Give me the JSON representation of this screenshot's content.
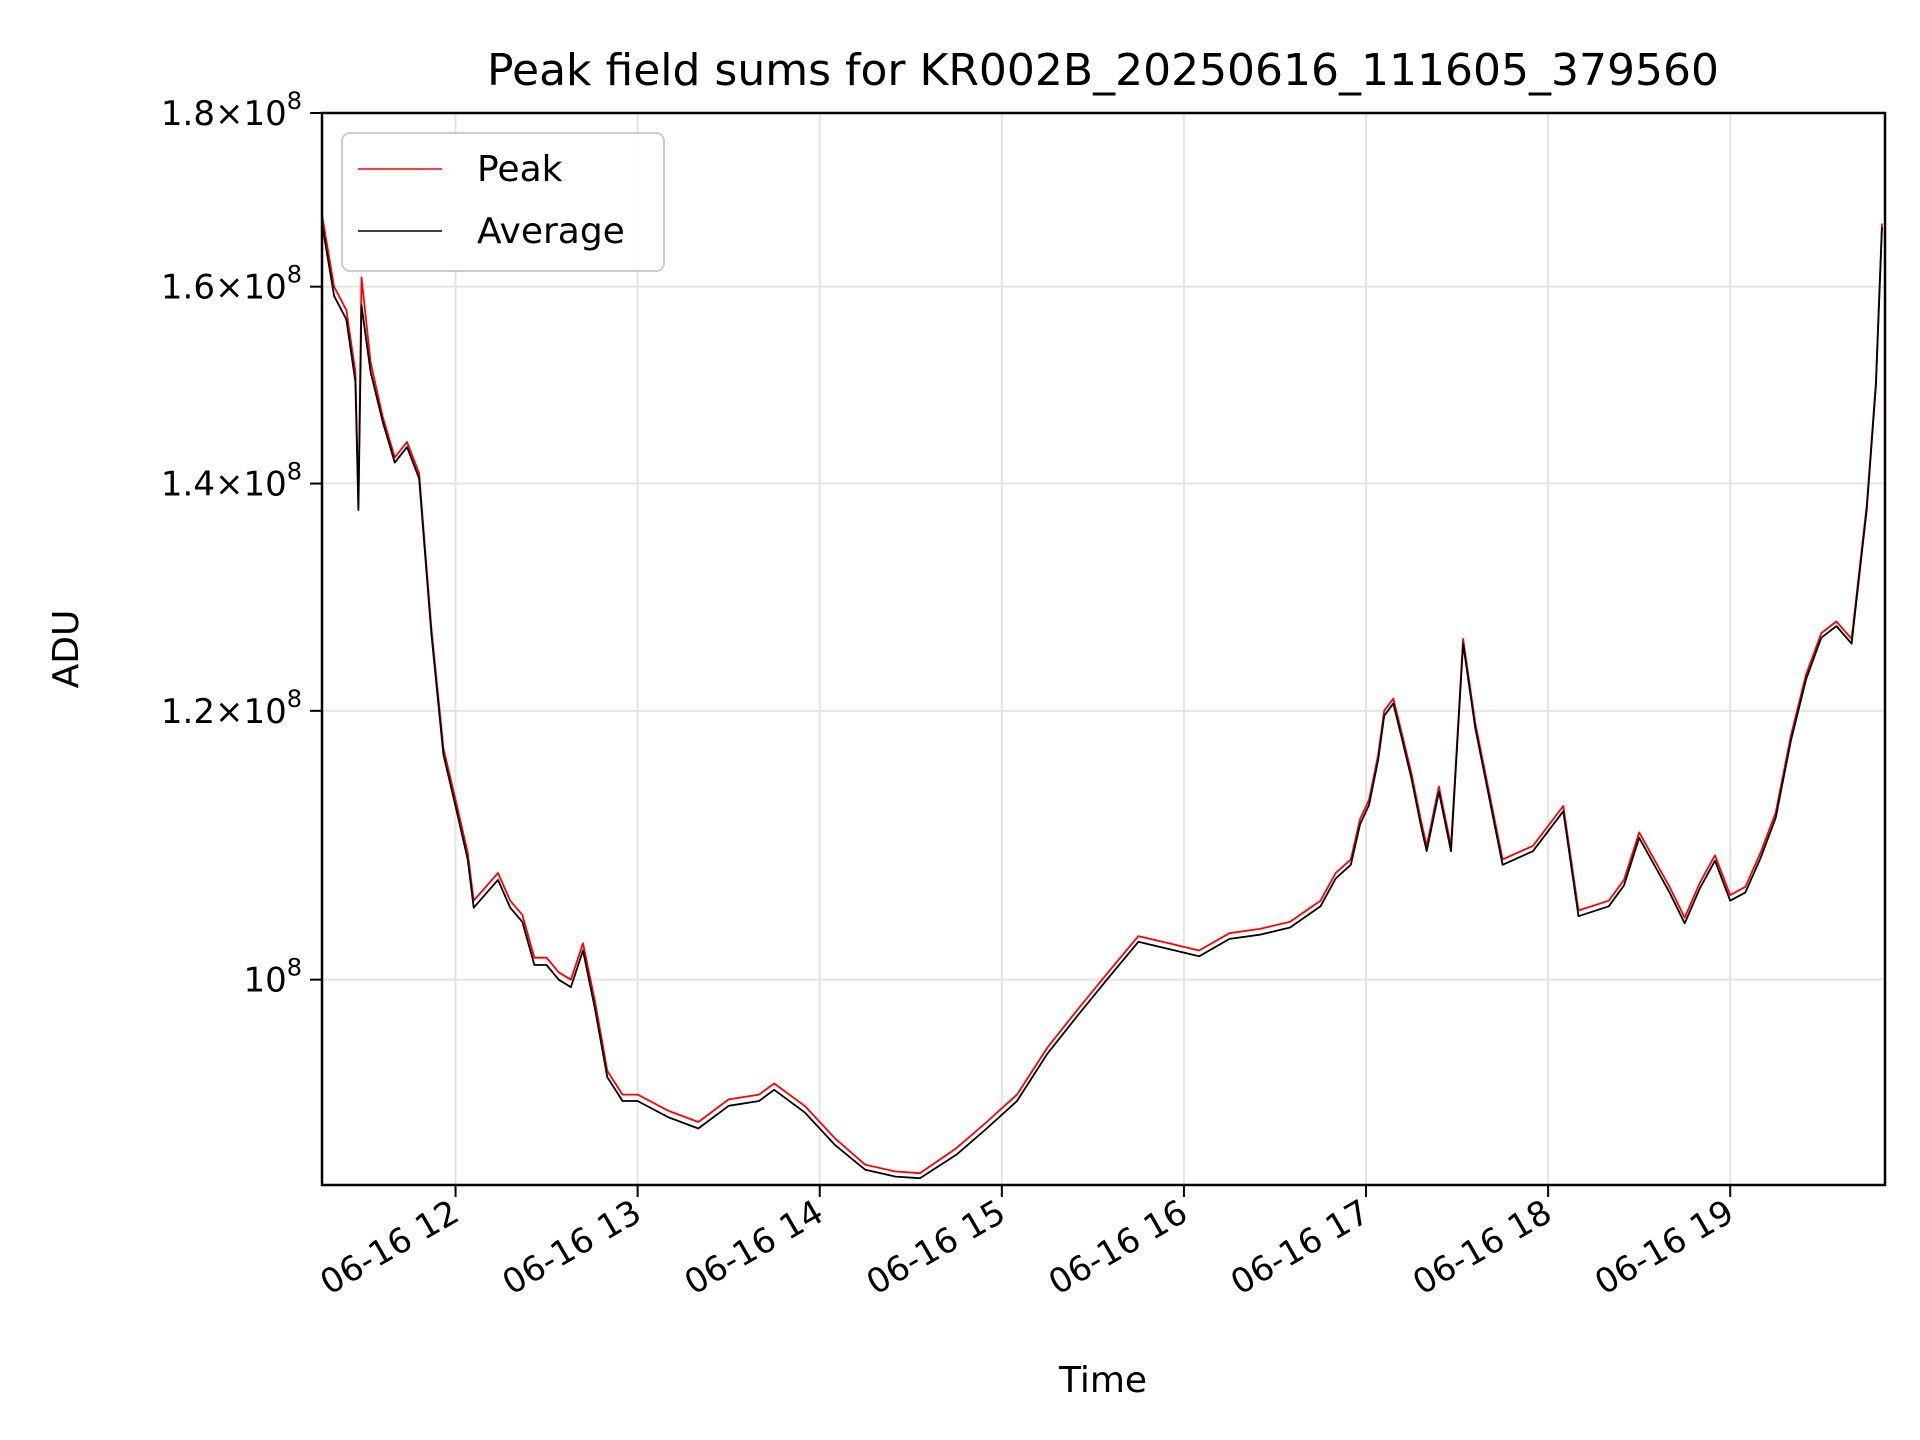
{
  "chart_data": {
    "type": "line",
    "title": "Peak field sums for KR002B_20250616_111605_379560",
    "xlabel": "Time",
    "ylabel": "ADU",
    "x_range": [
      "2025-06-16T11:16",
      "2025-06-16T19:51"
    ],
    "y_scale": "log",
    "ylim": [
      87000000,
      180000000
    ],
    "grid": true,
    "legend_position": "upper-left",
    "x_ticks": [
      {
        "value": "2025-06-16T12:00",
        "label": "06-16 12"
      },
      {
        "value": "2025-06-16T13:00",
        "label": "06-16 13"
      },
      {
        "value": "2025-06-16T14:00",
        "label": "06-16 14"
      },
      {
        "value": "2025-06-16T15:00",
        "label": "06-16 15"
      },
      {
        "value": "2025-06-16T16:00",
        "label": "06-16 16"
      },
      {
        "value": "2025-06-16T17:00",
        "label": "06-16 17"
      },
      {
        "value": "2025-06-16T18:00",
        "label": "06-16 18"
      },
      {
        "value": "2025-06-16T19:00",
        "label": "06-16 19"
      }
    ],
    "y_ticks": [
      {
        "value": 100000000,
        "mantissa": "",
        "exp": "8"
      },
      {
        "value": 120000000,
        "mantissa": "1.2",
        "exp": "8"
      },
      {
        "value": 140000000,
        "mantissa": "1.4",
        "exp": "8"
      },
      {
        "value": 160000000,
        "mantissa": "1.6",
        "exp": "8"
      },
      {
        "value": 180000000,
        "mantissa": "1.8",
        "exp": "8"
      }
    ],
    "x": [
      "2025-06-16T11:16",
      "2025-06-16T11:20",
      "2025-06-16T11:24",
      "2025-06-16T11:27",
      "2025-06-16T11:28",
      "2025-06-16T11:29",
      "2025-06-16T11:32",
      "2025-06-16T11:36",
      "2025-06-16T11:40",
      "2025-06-16T11:44",
      "2025-06-16T11:48",
      "2025-06-16T11:52",
      "2025-06-16T11:56",
      "2025-06-16T12:00",
      "2025-06-16T12:04",
      "2025-06-16T12:06",
      "2025-06-16T12:10",
      "2025-06-16T12:14",
      "2025-06-16T12:18",
      "2025-06-16T12:22",
      "2025-06-16T12:26",
      "2025-06-16T12:30",
      "2025-06-16T12:34",
      "2025-06-16T12:38",
      "2025-06-16T12:42",
      "2025-06-16T12:46",
      "2025-06-16T12:50",
      "2025-06-16T12:55",
      "2025-06-16T13:00",
      "2025-06-16T13:10",
      "2025-06-16T13:20",
      "2025-06-16T13:30",
      "2025-06-16T13:40",
      "2025-06-16T13:45",
      "2025-06-16T13:55",
      "2025-06-16T14:05",
      "2025-06-16T14:15",
      "2025-06-16T14:25",
      "2025-06-16T14:33",
      "2025-06-16T14:45",
      "2025-06-16T14:55",
      "2025-06-16T15:05",
      "2025-06-16T15:15",
      "2025-06-16T15:25",
      "2025-06-16T15:35",
      "2025-06-16T15:45",
      "2025-06-16T15:55",
      "2025-06-16T16:05",
      "2025-06-16T16:15",
      "2025-06-16T16:25",
      "2025-06-16T16:35",
      "2025-06-16T16:45",
      "2025-06-16T16:50",
      "2025-06-16T16:55",
      "2025-06-16T16:58",
      "2025-06-16T17:01",
      "2025-06-16T17:04",
      "2025-06-16T17:06",
      "2025-06-16T17:09",
      "2025-06-16T17:12",
      "2025-06-16T17:15",
      "2025-06-16T17:18",
      "2025-06-16T17:20",
      "2025-06-16T17:24",
      "2025-06-16T17:28",
      "2025-06-16T17:32",
      "2025-06-16T17:36",
      "2025-06-16T17:45",
      "2025-06-16T17:55",
      "2025-06-16T18:05",
      "2025-06-16T18:10",
      "2025-06-16T18:20",
      "2025-06-16T18:25",
      "2025-06-16T18:30",
      "2025-06-16T18:40",
      "2025-06-16T18:45",
      "2025-06-16T18:50",
      "2025-06-16T18:55",
      "2025-06-16T19:00",
      "2025-06-16T19:05",
      "2025-06-16T19:10",
      "2025-06-16T19:15",
      "2025-06-16T19:20",
      "2025-06-16T19:25",
      "2025-06-16T19:30",
      "2025-06-16T19:35",
      "2025-06-16T19:40",
      "2025-06-16T19:45",
      "2025-06-16T19:48",
      "2025-06-16T19:50"
    ],
    "series": [
      {
        "name": "Peak",
        "color": "#ff0000",
        "values": [
          168000000,
          160000000,
          157500000,
          151000000,
          138000000,
          161000000,
          152000000,
          146500000,
          142500000,
          144000000,
          141000000,
          127000000,
          117000000,
          113000000,
          109000000,
          105500000,
          106500000,
          107500000,
          105500000,
          104500000,
          101500000,
          101500000,
          100500000,
          100000000,
          102500000,
          98500000,
          94000000,
          92500000,
          92500000,
          91500000,
          90800000,
          92200000,
          92500000,
          93200000,
          91800000,
          89800000,
          88200000,
          87800000,
          87700000,
          89200000,
          90800000,
          92500000,
          95500000,
          98000000,
          100500000,
          103000000,
          102500000,
          102000000,
          103200000,
          103500000,
          104000000,
          105500000,
          107500000,
          108500000,
          111500000,
          113000000,
          116500000,
          120000000,
          121000000,
          118000000,
          115000000,
          111500000,
          109500000,
          114000000,
          109500000,
          126000000,
          119000000,
          108500000,
          109500000,
          112500000,
          104800000,
          105500000,
          107000000,
          110500000,
          106500000,
          104300000,
          106800000,
          108800000,
          105900000,
          106500000,
          109000000,
          112000000,
          118000000,
          123000000,
          126500000,
          127500000,
          126000000,
          138000000,
          150000000,
          167000000
        ]
      },
      {
        "name": "Average",
        "color": "#000000",
        "values": [
          167000000,
          159000000,
          156500000,
          150000000,
          137500000,
          158000000,
          151000000,
          146000000,
          142000000,
          143500000,
          140500000,
          126500000,
          116500000,
          112500000,
          108500000,
          105000000,
          106000000,
          107000000,
          105000000,
          104000000,
          101000000,
          101000000,
          100000000,
          99500000,
          102000000,
          98000000,
          93600000,
          92100000,
          92100000,
          91100000,
          90400000,
          91800000,
          92100000,
          92800000,
          91400000,
          89400000,
          87900000,
          87500000,
          87400000,
          88800000,
          90400000,
          92100000,
          95100000,
          97600000,
          100100000,
          102600000,
          102100000,
          101600000,
          102800000,
          103100000,
          103600000,
          105100000,
          107100000,
          108100000,
          111100000,
          112600000,
          116100000,
          119600000,
          120600000,
          117600000,
          114600000,
          111100000,
          109100000,
          113600000,
          109100000,
          125600000,
          118600000,
          108100000,
          109100000,
          112100000,
          104400000,
          105100000,
          106600000,
          110100000,
          106100000,
          103900000,
          106400000,
          108400000,
          105500000,
          106100000,
          108600000,
          111600000,
          117600000,
          122600000,
          126100000,
          127100000,
          125600000,
          137600000,
          149600000,
          166600000
        ]
      }
    ]
  }
}
